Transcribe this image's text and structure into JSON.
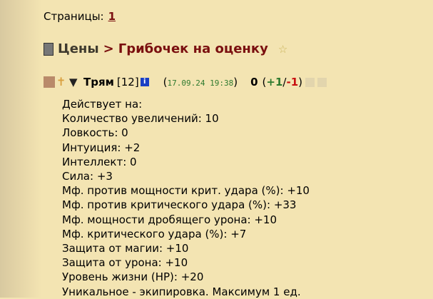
{
  "pager": {
    "label": "Страницы:",
    "current": "1"
  },
  "breadcrumb": {
    "parent": "Цены",
    "separator": ">",
    "current": "Грибочек на оценку"
  },
  "post": {
    "author": "Трям",
    "level": "[12]",
    "info_icon": "i",
    "date": "17.09.24 19:38",
    "score": "0",
    "plus": "+1",
    "minus": "-1",
    "lines": [
      "Действует на:",
      "Количество увеличений: 10",
      "Ловкость: 0",
      "Интуиция: +2",
      "Интеллект: 0",
      "Сила: +3",
      "Мф. против мощности крит. удара (%): +10",
      "Мф. против критического удара (%): +33",
      "Мф. мощности дробящего урона: +10",
      "Мф. критического удара (%): +7",
      "Защита от магии: +10",
      "Защита от урона: +10",
      "Уровень жизни (HP): +20",
      "Уникальное - экипировка. Максимум 1 ед."
    ]
  }
}
